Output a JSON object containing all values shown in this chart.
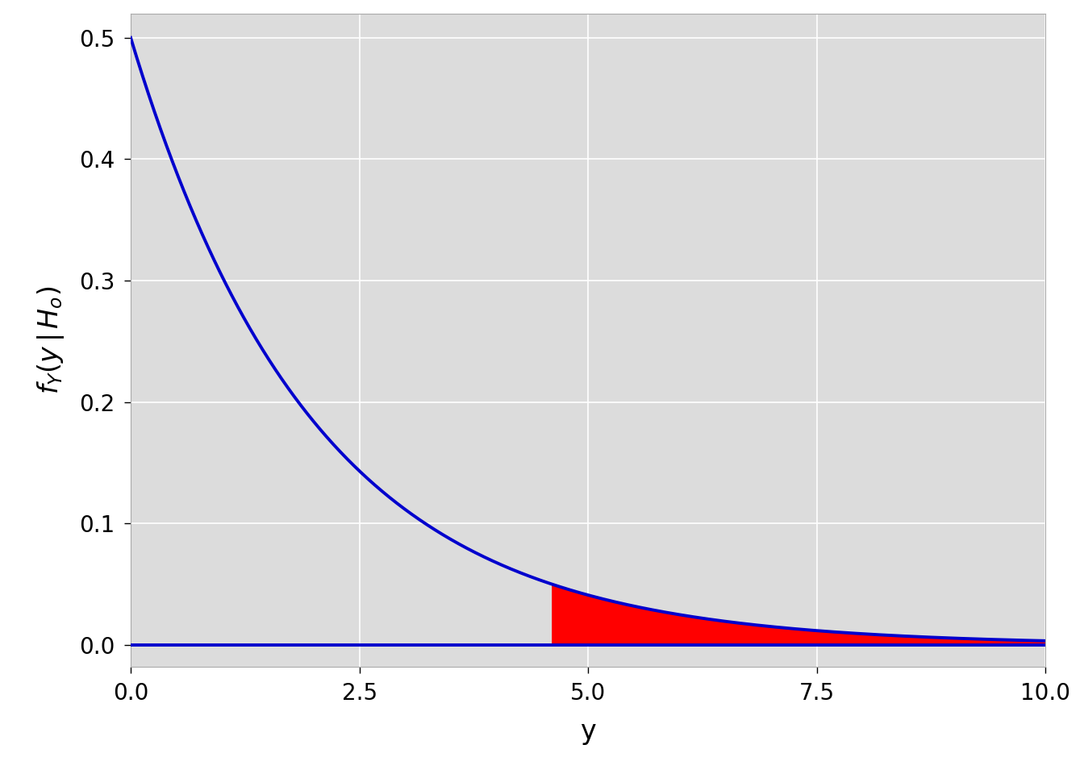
{
  "xlabel": "y",
  "xlim": [
    0,
    10
  ],
  "ylim": [
    -0.018,
    0.52
  ],
  "x_ticks": [
    0.0,
    2.5,
    5.0,
    7.5,
    10.0
  ],
  "y_ticks": [
    0.0,
    0.1,
    0.2,
    0.3,
    0.4,
    0.5
  ],
  "lambda": 0.5,
  "critical_value": 4.605170185988091,
  "curve_color": "#0000CD",
  "shade_color": "#FF0000",
  "background_color": "#DCDCDC",
  "panel_color": "#DCDCDC",
  "grid_color": "#FFFFFF",
  "line_width": 2.8,
  "fig_width": 13.44,
  "fig_height": 9.6,
  "dpi": 100,
  "tick_labelsize": 20,
  "label_fontsize": 24
}
